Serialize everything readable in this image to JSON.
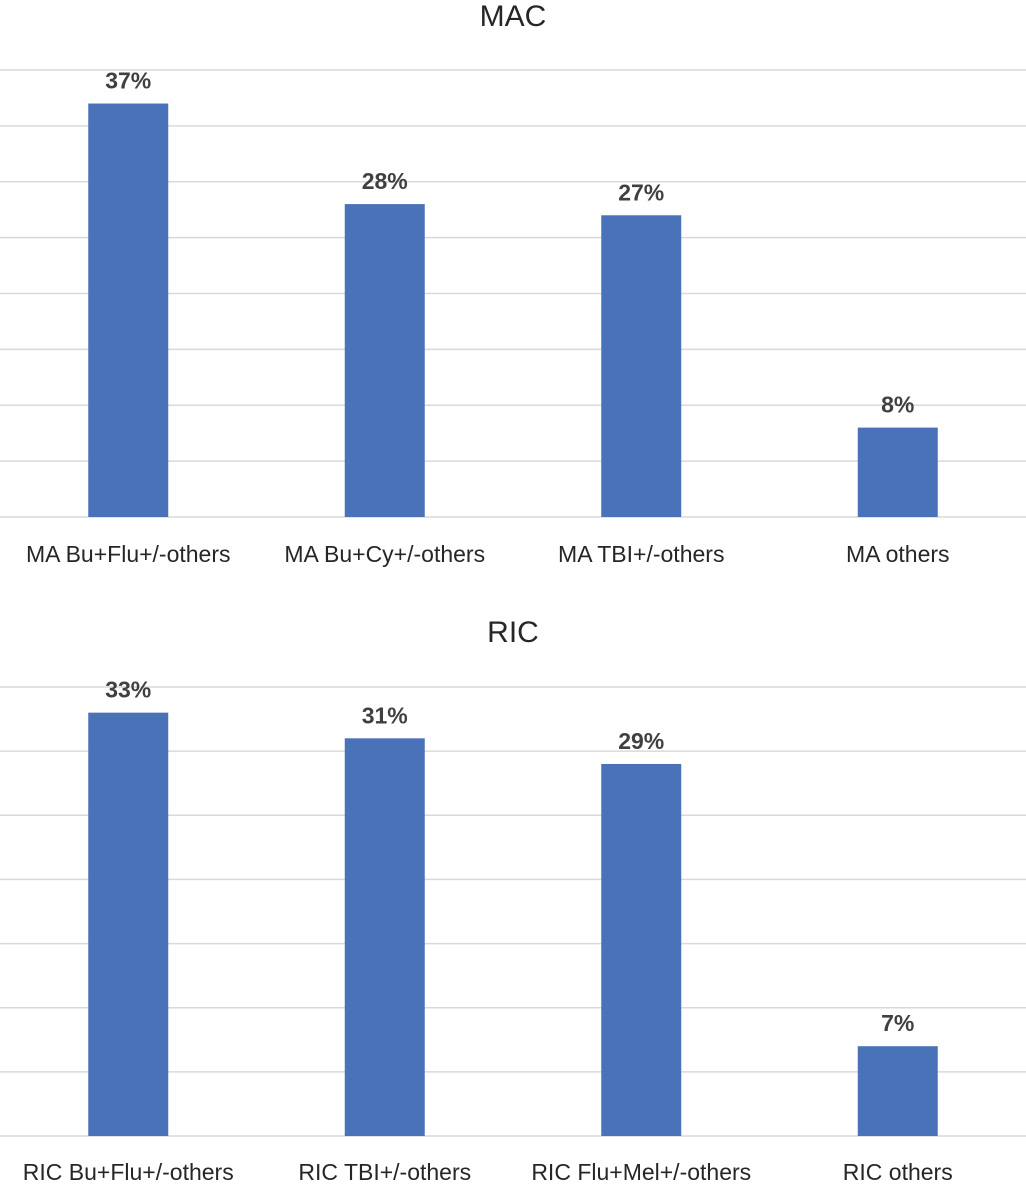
{
  "chart_data": [
    {
      "type": "bar",
      "title": "MAC",
      "categories": [
        "MA Bu+Flu+/-others",
        "MA Bu+Cy+/-others",
        "MA TBI+/-others",
        "MA others"
      ],
      "values": [
        37,
        28,
        27,
        8
      ],
      "value_labels": [
        "37%",
        "28%",
        "27%",
        "8%"
      ],
      "unit": "%",
      "ylim": [
        0,
        40
      ],
      "grid": true,
      "bar_color": "#4a72b8"
    },
    {
      "type": "bar",
      "title": "RIC",
      "categories": [
        "RIC Bu+Flu+/-others",
        "RIC TBI+/-others",
        "RIC Flu+Mel+/-others",
        "RIC others"
      ],
      "values": [
        33,
        31,
        29,
        7
      ],
      "value_labels": [
        "33%",
        "31%",
        "29%",
        "7%"
      ],
      "unit": "%",
      "ylim": [
        0,
        35
      ],
      "grid": true,
      "bar_color": "#4a72b8"
    }
  ]
}
